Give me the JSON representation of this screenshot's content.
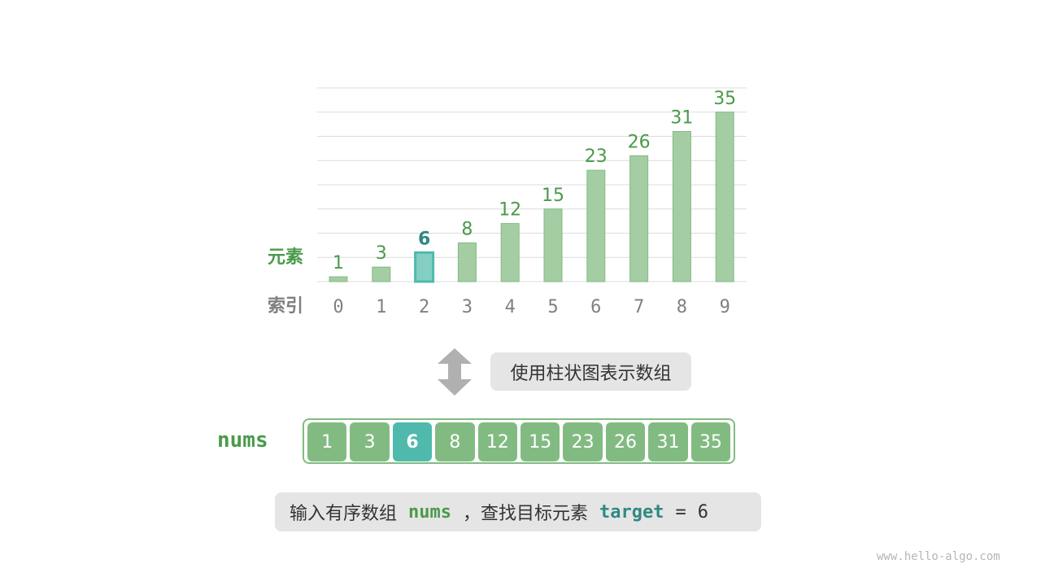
{
  "chart_data": {
    "type": "bar",
    "categories": [
      "0",
      "1",
      "2",
      "3",
      "4",
      "5",
      "6",
      "7",
      "8",
      "9"
    ],
    "values": [
      1,
      3,
      6,
      8,
      12,
      15,
      23,
      26,
      31,
      35
    ],
    "highlight_index": 2,
    "ylabel": "元素",
    "xlabel": "索引",
    "ylim": [
      0,
      40
    ],
    "grid": true
  },
  "caption": "使用柱状图表示数组",
  "array_label": "nums",
  "array": [
    "1",
    "3",
    "6",
    "8",
    "12",
    "15",
    "23",
    "26",
    "31",
    "35"
  ],
  "footer": {
    "text1": "输入有序数组",
    "nums": "nums",
    "text2": "，查找目标元素",
    "target": "target",
    "eq": "=",
    "value": "6"
  },
  "watermark": "www.hello-algo.com",
  "colors": {
    "bar": "#a4cda4",
    "bar_stroke": "#82bb82",
    "highlight": "#83cfc4",
    "highlight_stroke": "#4fb9ad",
    "label_green": "#4a9a4a",
    "label_teal": "#2e8a80",
    "axis_gray": "#808080"
  }
}
